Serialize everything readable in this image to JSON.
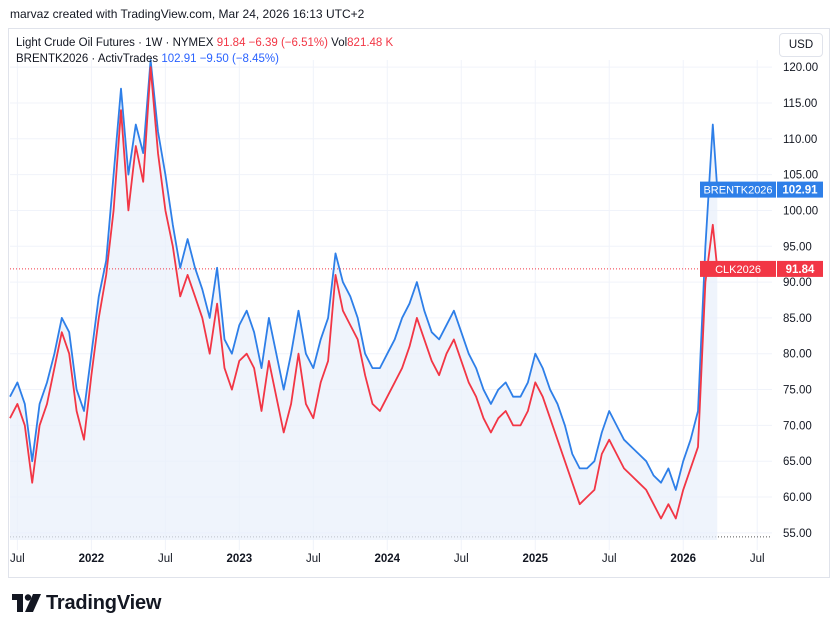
{
  "header": {
    "created_by": "marvaz created with TradingView.com, Mar 24, 2026 16:13 UTC+2"
  },
  "currency_button": "USD",
  "legend": {
    "series1": {
      "name": "Light Crude Oil Futures · 1W · NYMEX",
      "price": "91.84",
      "change": "−6.39 (−6.51%)",
      "vol_label": "Vol",
      "vol_value": "821.48 K"
    },
    "series2": {
      "name": "BRENTK2026 · ActivTrades",
      "price": "102.91",
      "change": "−9.50 (−8.45%)"
    }
  },
  "brand": {
    "name": "TradingView",
    "logo_icon": "tradingview-logo-icon"
  },
  "colors": {
    "wti": "#f23645",
    "brent": "#2e7fe8",
    "fill": "#e8effb",
    "grid": "#f0f3fa",
    "text": "#131722"
  },
  "chart_data": {
    "type": "line",
    "ylim": [
      54,
      121
    ],
    "xlim": [
      2021.45,
      2026.6
    ],
    "y_ticks": [
      "55.00",
      "60.00",
      "65.00",
      "70.00",
      "75.00",
      "80.00",
      "85.00",
      "90.00",
      "95.00",
      "100.00",
      "105.00",
      "110.00",
      "115.00",
      "120.00"
    ],
    "y_tick_values": [
      55,
      60,
      65,
      70,
      75,
      80,
      85,
      90,
      95,
      100,
      105,
      110,
      115,
      120
    ],
    "x_ticks": [
      {
        "label": "Jul",
        "t": 2021.5
      },
      {
        "label": "2022",
        "t": 2022.0
      },
      {
        "label": "Jul",
        "t": 2022.5
      },
      {
        "label": "2023",
        "t": 2023.0
      },
      {
        "label": "Jul",
        "t": 2023.5
      },
      {
        "label": "2024",
        "t": 2024.0
      },
      {
        "label": "Jul",
        "t": 2024.5
      },
      {
        "label": "2025",
        "t": 2025.0
      },
      {
        "label": "Jul",
        "t": 2025.5
      },
      {
        "label": "2026",
        "t": 2026.0
      },
      {
        "label": "Jul",
        "t": 2026.5
      }
    ],
    "last_labels": [
      {
        "name": "BRENTK2026",
        "value": 102.91,
        "text": "102.91"
      },
      {
        "name": "CLK2026",
        "value": 91.84,
        "text": "91.84"
      }
    ],
    "series": [
      {
        "name": "BRENTK2026",
        "x": [
          2021.45,
          2021.5,
          2021.55,
          2021.6,
          2021.65,
          2021.7,
          2021.75,
          2021.8,
          2021.85,
          2021.9,
          2021.95,
          2022.0,
          2022.05,
          2022.1,
          2022.15,
          2022.2,
          2022.25,
          2022.3,
          2022.35,
          2022.4,
          2022.45,
          2022.5,
          2022.55,
          2022.6,
          2022.65,
          2022.7,
          2022.75,
          2022.8,
          2022.85,
          2022.9,
          2022.95,
          2023.0,
          2023.05,
          2023.1,
          2023.15,
          2023.2,
          2023.25,
          2023.3,
          2023.35,
          2023.4,
          2023.45,
          2023.5,
          2023.55,
          2023.6,
          2023.65,
          2023.7,
          2023.75,
          2023.8,
          2023.85,
          2023.9,
          2023.95,
          2024.0,
          2024.05,
          2024.1,
          2024.15,
          2024.2,
          2024.25,
          2024.3,
          2024.35,
          2024.4,
          2024.45,
          2024.5,
          2024.55,
          2024.6,
          2024.65,
          2024.7,
          2024.75,
          2024.8,
          2024.85,
          2024.9,
          2024.95,
          2025.0,
          2025.05,
          2025.1,
          2025.15,
          2025.2,
          2025.25,
          2025.3,
          2025.35,
          2025.4,
          2025.45,
          2025.5,
          2025.55,
          2025.6,
          2025.65,
          2025.7,
          2025.75,
          2025.8,
          2025.85,
          2025.9,
          2025.95,
          2026.0,
          2026.05,
          2026.1,
          2026.15,
          2026.2,
          2026.23
        ],
        "values": [
          74,
          76,
          73,
          65,
          73,
          76,
          80,
          85,
          83,
          75,
          72,
          80,
          88,
          93,
          105,
          117,
          105,
          112,
          108,
          121,
          111,
          105,
          98,
          92,
          96,
          92,
          89,
          85,
          92,
          82,
          80,
          84,
          86,
          83,
          78,
          85,
          80,
          75,
          80,
          86,
          80,
          78,
          82,
          85,
          94,
          90,
          88,
          85,
          80,
          78,
          78,
          80,
          82,
          85,
          87,
          90,
          86,
          83,
          82,
          84,
          86,
          83,
          80,
          78,
          75,
          73,
          75,
          76,
          74,
          74,
          76,
          80,
          78,
          75,
          73,
          70,
          66,
          64,
          64,
          65,
          69,
          72,
          70,
          68,
          67,
          66,
          65,
          63,
          62,
          64,
          61,
          65,
          68,
          72,
          95,
          112,
          102.91
        ]
      },
      {
        "name": "CLK2026",
        "x": [
          2021.45,
          2021.5,
          2021.55,
          2021.6,
          2021.65,
          2021.7,
          2021.75,
          2021.8,
          2021.85,
          2021.9,
          2021.95,
          2022.0,
          2022.05,
          2022.1,
          2022.15,
          2022.2,
          2022.25,
          2022.3,
          2022.35,
          2022.4,
          2022.45,
          2022.5,
          2022.55,
          2022.6,
          2022.65,
          2022.7,
          2022.75,
          2022.8,
          2022.85,
          2022.9,
          2022.95,
          2023.0,
          2023.05,
          2023.1,
          2023.15,
          2023.2,
          2023.25,
          2023.3,
          2023.35,
          2023.4,
          2023.45,
          2023.5,
          2023.55,
          2023.6,
          2023.65,
          2023.7,
          2023.75,
          2023.8,
          2023.85,
          2023.9,
          2023.95,
          2024.0,
          2024.05,
          2024.1,
          2024.15,
          2024.2,
          2024.25,
          2024.3,
          2024.35,
          2024.4,
          2024.45,
          2024.5,
          2024.55,
          2024.6,
          2024.65,
          2024.7,
          2024.75,
          2024.8,
          2024.85,
          2024.9,
          2024.95,
          2025.0,
          2025.05,
          2025.1,
          2025.15,
          2025.2,
          2025.25,
          2025.3,
          2025.35,
          2025.4,
          2025.45,
          2025.5,
          2025.55,
          2025.6,
          2025.65,
          2025.7,
          2025.75,
          2025.8,
          2025.85,
          2025.9,
          2025.95,
          2026.0,
          2026.05,
          2026.1,
          2026.15,
          2026.2,
          2026.23
        ],
        "values": [
          71,
          73,
          70,
          62,
          70,
          73,
          78,
          83,
          80,
          72,
          68,
          77,
          85,
          91,
          100,
          114,
          100,
          109,
          104,
          120,
          108,
          100,
          95,
          88,
          91,
          88,
          85,
          80,
          87,
          78,
          75,
          79,
          80,
          78,
          72,
          79,
          74,
          69,
          73,
          80,
          73,
          71,
          76,
          79,
          91,
          86,
          84,
          82,
          77,
          73,
          72,
          74,
          76,
          78,
          81,
          85,
          82,
          79,
          77,
          80,
          82,
          79,
          76,
          74,
          71,
          69,
          71,
          72,
          70,
          70,
          72,
          76,
          74,
          71,
          68,
          65,
          62,
          59,
          60,
          61,
          66,
          68,
          66,
          64,
          63,
          62,
          61,
          59,
          57,
          59,
          57,
          61,
          64,
          67,
          90,
          98,
          91.84
        ]
      }
    ]
  }
}
